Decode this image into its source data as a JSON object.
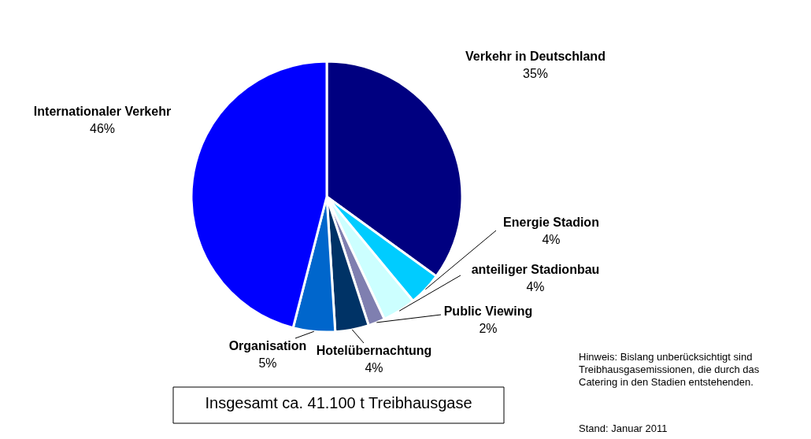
{
  "chart_data": {
    "type": "pie",
    "categories": [
      "Verkehr in Deutschland",
      "Energie Stadion",
      "anteiliger Stadionbau",
      "Public Viewing",
      "Hotelübernachtung",
      "Organisation",
      "Internationaler Verkehr"
    ],
    "values": [
      35,
      4,
      4,
      2,
      4,
      5,
      46
    ],
    "value_labels": [
      "35%",
      "4%",
      "4%",
      "2%",
      "4%",
      "5%",
      "46%"
    ],
    "colors": [
      "#000080",
      "#00ccff",
      "#ccffff",
      "#7f7fb0",
      "#003366",
      "#0066cc",
      "#0000ff"
    ],
    "annotations": [
      "Insgesamt ca. 41.100 t Treibhausgase",
      "Hinweis: Bislang unberücksichtigt sind\nTreibhausgasemissionen, die durch das\nCatering in den Stadien entstehenden.",
      "Stand: Januar 2011"
    ]
  }
}
